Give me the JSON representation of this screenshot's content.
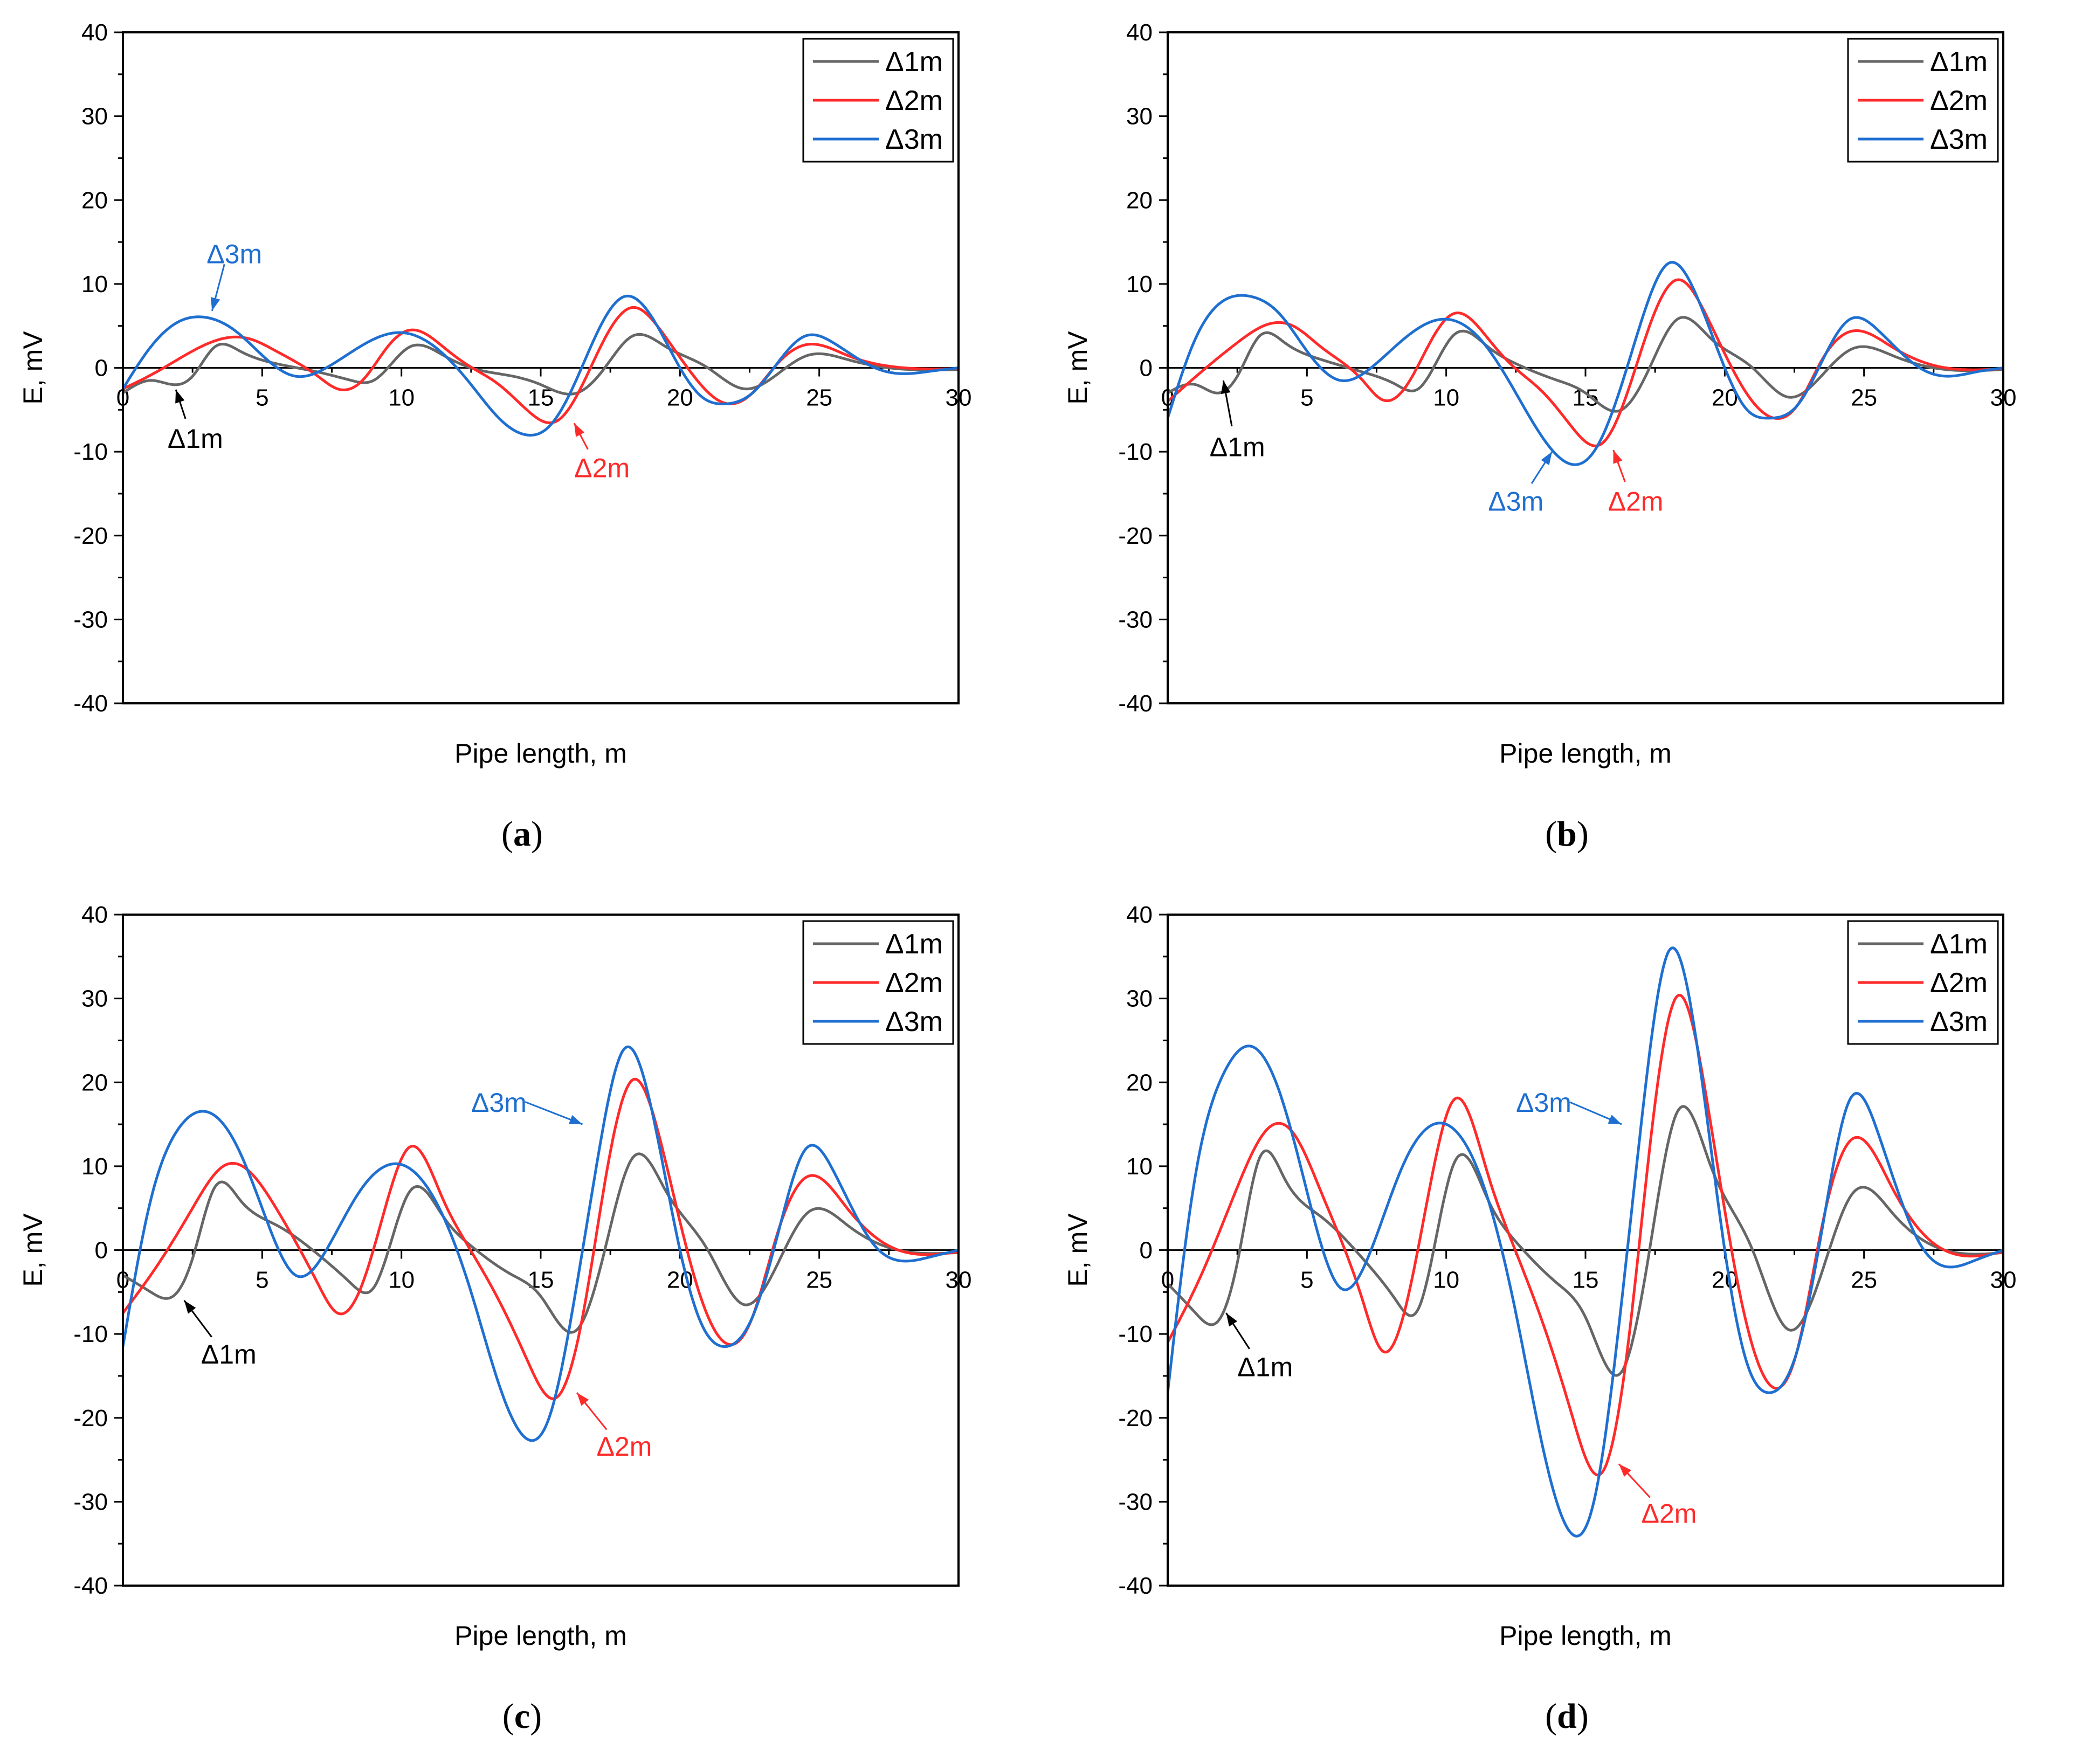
{
  "chart_data": [
    {
      "panel_label": "a",
      "type": "line",
      "xlabel": "Pipe length, m",
      "ylabel": "E, mV",
      "xlim": [
        0,
        30
      ],
      "ylim": [
        -40,
        40
      ],
      "xticks": [
        0,
        5,
        10,
        15,
        20,
        25,
        30
      ],
      "yticks": [
        -40,
        -30,
        -20,
        -10,
        0,
        10,
        20,
        30,
        40
      ],
      "legend": [
        "Δ1m",
        "Δ2m",
        "Δ3m"
      ],
      "legend_position": "top-right",
      "series": [
        {
          "name": "Δ1m",
          "color": "#666666",
          "x": [
            0,
            1,
            1.8,
            2.5,
            3.3,
            4.2,
            5.5,
            7,
            8.2,
            9,
            10.3,
            11.5,
            12.5,
            14,
            15,
            16.3,
            17.3,
            18.3,
            19.5,
            21,
            22.3,
            23.6,
            24.6,
            26,
            27.5,
            30
          ],
          "y": [
            -3,
            -1.5,
            -2,
            -1,
            2.5,
            2,
            0.5,
            -0.5,
            -1.5,
            -1.5,
            2.5,
            1.5,
            0,
            -1,
            -2,
            -3,
            0,
            3.8,
            2.5,
            0,
            -2.5,
            -0.5,
            1.5,
            1,
            0,
            -0.2
          ]
        },
        {
          "name": "Δ2m",
          "color": "#ff2a2a",
          "x": [
            0,
            1.2,
            2.5,
            3.6,
            4.5,
            5.5,
            7,
            7.7,
            8.6,
            9.5,
            10.3,
            11.5,
            12.3,
            13.5,
            14.5,
            15.6,
            16.5,
            17.3,
            18.3,
            19.3,
            20.5,
            21.6,
            22.6,
            23.5,
            24.6,
            26,
            27.5,
            30
          ],
          "y": [
            -2.5,
            -0.5,
            2,
            3.5,
            3.5,
            2,
            -1,
            -2.5,
            -1.5,
            2.5,
            4.5,
            2.5,
            0.5,
            -2,
            -5,
            -6.3,
            -2,
            3.5,
            7.2,
            4.5,
            -1,
            -4.2,
            -3,
            0.5,
            2.8,
            1.5,
            0.2,
            -0.1
          ]
        },
        {
          "name": "Δ3m",
          "color": "#1f6fd1",
          "x": [
            0,
            1,
            2,
            3,
            4,
            5,
            6.2,
            7.3,
            8.5,
            10,
            11.2,
            12.5,
            13.5,
            14.5,
            15.3,
            16.2,
            17,
            18,
            19,
            20,
            20.8,
            21.6,
            22.6,
            23.6,
            24.5,
            25.5,
            27,
            28,
            29,
            30
          ],
          "y": [
            -2.5,
            2.5,
            5.5,
            6,
            4.5,
            1.5,
            -1,
            0,
            2.5,
            4.2,
            2.5,
            -2,
            -6,
            -8,
            -7,
            -2,
            4,
            8.5,
            6,
            0,
            -3.5,
            -4.3,
            -3,
            1,
            3.8,
            3,
            0,
            -0.7,
            -0.4,
            0
          ]
        }
      ],
      "annotations": [
        {
          "text": "Δ3m",
          "color": "#1f6fd1",
          "x": 4,
          "y": 13.5,
          "target": [
            3.2,
            6.8
          ]
        },
        {
          "text": "Δ1m",
          "color": "#000000",
          "x": 2.6,
          "y": -8.5,
          "target": [
            1.9,
            -2.6
          ]
        },
        {
          "text": "Δ2m",
          "color": "#ff2a2a",
          "x": 17.2,
          "y": -12,
          "target": [
            16.2,
            -6.6
          ]
        }
      ]
    },
    {
      "panel_label": "b",
      "type": "line",
      "xlabel": "Pipe length, m",
      "ylabel": "E, mV",
      "xlim": [
        0,
        30
      ],
      "ylim": [
        -40,
        40
      ],
      "xticks": [
        0,
        5,
        10,
        15,
        20,
        25,
        30
      ],
      "yticks": [
        -40,
        -30,
        -20,
        -10,
        0,
        10,
        20,
        30,
        40
      ],
      "legend": [
        "Δ1m",
        "Δ2m",
        "Δ3m"
      ],
      "legend_position": "top-right",
      "series": [
        {
          "name": "Δ1m",
          "color": "#666666",
          "x": [
            0,
            1,
            1.8,
            2.5,
            3.3,
            4.2,
            5.5,
            7,
            8.2,
            9,
            10.3,
            11.5,
            12.5,
            14,
            15,
            16.3,
            17.3,
            18.3,
            19.5,
            21,
            22.3,
            23.6,
            24.6,
            26,
            27.5,
            30
          ],
          "y": [
            -3,
            -2,
            -3,
            -1,
            3.8,
            3,
            1,
            -0.5,
            -2,
            -2.5,
            4,
            2.5,
            0.5,
            -1.5,
            -3,
            -5,
            0,
            5.8,
            3.5,
            0,
            -3.5,
            -0.5,
            2.3,
            1.5,
            0,
            -0.2
          ]
        },
        {
          "name": "Δ2m",
          "color": "#ff2a2a",
          "x": [
            0,
            1.2,
            2.5,
            3.6,
            4.5,
            5.5,
            7,
            7.7,
            8.6,
            9.5,
            10.3,
            11.5,
            12.3,
            13.5,
            14.5,
            15.6,
            16.5,
            17.3,
            18.3,
            19.3,
            20.5,
            21.6,
            22.6,
            23.5,
            24.6,
            26,
            27.5,
            30
          ],
          "y": [
            -4,
            -0.5,
            3,
            5.2,
            5,
            2.5,
            -1.5,
            -3.8,
            -2,
            3.5,
            6.5,
            3.5,
            0.5,
            -3,
            -7,
            -9,
            -3,
            5,
            10.5,
            6.5,
            -1.5,
            -5.8,
            -4.5,
            1,
            4.4,
            2.5,
            0.3,
            -0.1
          ]
        },
        {
          "name": "Δ3m",
          "color": "#1f6fd1",
          "x": [
            0,
            1,
            2,
            3,
            4,
            5,
            6.2,
            7.3,
            8.5,
            10,
            11.2,
            12.5,
            13.5,
            14.5,
            15.3,
            16.2,
            17,
            18,
            19,
            20,
            20.8,
            21.6,
            22.6,
            23.6,
            24.5,
            25.5,
            27,
            28,
            29,
            30
          ],
          "y": [
            -6,
            3.5,
            8,
            8.5,
            6.5,
            2,
            -1.5,
            0,
            3.5,
            5.8,
            3.5,
            -3,
            -8.5,
            -11.5,
            -10,
            -3,
            5.5,
            12.5,
            8.5,
            0,
            -5,
            -6,
            -4.5,
            1.5,
            5.8,
            4.5,
            0,
            -1,
            -0.5,
            0
          ]
        }
      ],
      "annotations": [
        {
          "text": "Δ1m",
          "color": "#000000",
          "x": 2.5,
          "y": -9.5,
          "target": [
            2.0,
            -1.5
          ]
        },
        {
          "text": "Δ3m",
          "color": "#1f6fd1",
          "x": 12.5,
          "y": -16,
          "target": [
            13.8,
            -10
          ]
        },
        {
          "text": "Δ2m",
          "color": "#ff2a2a",
          "x": 16.8,
          "y": -16,
          "target": [
            16.0,
            -9.8
          ]
        }
      ]
    },
    {
      "panel_label": "c",
      "type": "line",
      "xlabel": "Pipe length, m",
      "ylabel": "E, mV",
      "xlim": [
        0,
        30
      ],
      "ylim": [
        -40,
        40
      ],
      "xticks": [
        0,
        5,
        10,
        15,
        20,
        25,
        30
      ],
      "yticks": [
        -40,
        -30,
        -20,
        -10,
        0,
        10,
        20,
        30,
        40
      ],
      "legend": [
        "Δ1m",
        "Δ2m",
        "Δ3m"
      ],
      "legend_position": "top-right",
      "series": [
        {
          "name": "Δ1m",
          "color": "#666666",
          "x": [
            0,
            1,
            1.8,
            2.5,
            3.3,
            4.2,
            5.5,
            7,
            8.2,
            9,
            10.3,
            11.5,
            12.5,
            14,
            15,
            16.3,
            17.3,
            18.3,
            19.5,
            21,
            22.3,
            23.6,
            24.6,
            26,
            27.5,
            30
          ],
          "y": [
            -3,
            -5,
            -5.5,
            -1,
            7.5,
            6,
            3,
            -0.5,
            -4,
            -4.5,
            7,
            4,
            0.5,
            -3,
            -5.5,
            -9.5,
            0,
            11,
            7,
            0,
            -6.5,
            -1,
            4.5,
            3,
            0.3,
            -0.3
          ]
        },
        {
          "name": "Δ2m",
          "color": "#ff2a2a",
          "x": [
            0,
            1.2,
            2.5,
            3.6,
            4.5,
            5.5,
            7,
            7.7,
            8.6,
            9.5,
            10.3,
            11.5,
            12.3,
            13.5,
            14.5,
            15.6,
            16.5,
            17.3,
            18.3,
            19.3,
            20.5,
            21.6,
            22.6,
            23.5,
            24.6,
            26,
            27.5,
            30
          ],
          "y": [
            -7.5,
            -2,
            5,
            10,
            9.5,
            5,
            -4,
            -7.5,
            -4,
            6,
            12.3,
            6,
            1,
            -6,
            -13,
            -17.5,
            -8,
            8,
            20.3,
            13,
            -3,
            -11,
            -8,
            2,
            8.8,
            5,
            0.5,
            -0.2
          ]
        },
        {
          "name": "Δ3m",
          "color": "#1f6fd1",
          "x": [
            0,
            1,
            2,
            3,
            4,
            5,
            6.2,
            7.3,
            8.5,
            10,
            11.2,
            12.5,
            13.5,
            14.5,
            15.3,
            16.2,
            17,
            18,
            19,
            20,
            20.8,
            21.6,
            22.6,
            23.6,
            24.5,
            25.5,
            27,
            28,
            29,
            30
          ],
          "y": [
            -11.5,
            6,
            14.5,
            16.5,
            13,
            5,
            -3,
            0,
            7,
            10.2,
            6,
            -5,
            -16,
            -22.5,
            -20,
            -6,
            10,
            24,
            16.5,
            0,
            -9,
            -11.5,
            -8,
            3,
            12,
            9.5,
            0.5,
            -1.3,
            -0.8,
            0
          ]
        }
      ],
      "annotations": [
        {
          "text": "Δ3m",
          "color": "#1f6fd1",
          "x": 13.5,
          "y": 17.5,
          "target": [
            16.5,
            15
          ]
        },
        {
          "text": "Δ1m",
          "color": "#000000",
          "x": 3.8,
          "y": -12.5,
          "target": [
            2.2,
            -6
          ]
        },
        {
          "text": "Δ2m",
          "color": "#ff2a2a",
          "x": 18,
          "y": -23.5,
          "target": [
            16.3,
            -17
          ]
        }
      ]
    },
    {
      "panel_label": "d",
      "type": "line",
      "xlabel": "Pipe length, m",
      "ylabel": "E, mV",
      "xlim": [
        0,
        30
      ],
      "ylim": [
        -40,
        40
      ],
      "xticks": [
        0,
        5,
        10,
        15,
        20,
        25,
        30
      ],
      "yticks": [
        -40,
        -30,
        -20,
        -10,
        0,
        10,
        20,
        30,
        40
      ],
      "legend": [
        "Δ1m",
        "Δ2m",
        "Δ3m"
      ],
      "legend_position": "top-right",
      "series": [
        {
          "name": "Δ1m",
          "color": "#666666",
          "x": [
            0,
            1,
            1.8,
            2.5,
            3.3,
            4.2,
            5.5,
            7,
            8.2,
            9,
            10.3,
            11.5,
            12.5,
            14,
            15,
            16.3,
            17.3,
            18.3,
            19.5,
            21,
            22.3,
            23.6,
            24.6,
            26,
            27.5,
            30
          ],
          "y": [
            -4,
            -7.5,
            -8.5,
            -1.5,
            11,
            8.5,
            4,
            -1,
            -6,
            -7,
            10.5,
            6,
            1,
            -4,
            -8,
            -14.5,
            0,
            16.5,
            10,
            0,
            -9.5,
            -1.5,
            6.8,
            4.5,
            0.5,
            -0.3
          ]
        },
        {
          "name": "Δ2m",
          "color": "#ff2a2a",
          "x": [
            0,
            1.2,
            2.5,
            3.6,
            4.5,
            5.5,
            7,
            7.7,
            8.6,
            9.5,
            10.3,
            11.5,
            12.3,
            13.5,
            14.5,
            15.6,
            16.5,
            17.3,
            18.3,
            19.3,
            20.5,
            21.6,
            22.6,
            23.5,
            24.6,
            26,
            27.5,
            30
          ],
          "y": [
            -11,
            -3,
            7.5,
            14.5,
            14,
            7,
            -6,
            -12,
            -6,
            9,
            18,
            9,
            1.5,
            -9,
            -19.5,
            -26.5,
            -12,
            12,
            30.3,
            19,
            -4.5,
            -16,
            -12,
            3,
            13.3,
            7.5,
            0.8,
            -0.2
          ]
        },
        {
          "name": "Δ3m",
          "color": "#1f6fd1",
          "x": [
            0,
            1,
            2,
            3,
            4,
            5,
            6.2,
            7.3,
            8.5,
            10,
            11.2,
            12.5,
            13.5,
            14.5,
            15.3,
            16.2,
            17,
            18,
            19,
            20,
            20.8,
            21.6,
            22.6,
            23.6,
            24.5,
            25.5,
            27,
            28,
            29,
            30
          ],
          "y": [
            -17,
            9,
            21,
            24.3,
            19,
            7,
            -4.5,
            0,
            10.5,
            15,
            9,
            -7.5,
            -24,
            -33.8,
            -30,
            -9,
            15,
            35.7,
            24.5,
            0,
            -13.5,
            -17,
            -12,
            4.5,
            18,
            14,
            0.8,
            -2,
            -1.2,
            0
          ]
        }
      ],
      "annotations": [
        {
          "text": "Δ3m",
          "color": "#1f6fd1",
          "x": 13.5,
          "y": 17.5,
          "target": [
            16.3,
            15
          ]
        },
        {
          "text": "Δ1m",
          "color": "#000000",
          "x": 3.5,
          "y": -14,
          "target": [
            2.1,
            -7.5
          ]
        },
        {
          "text": "Δ2m",
          "color": "#ff2a2a",
          "x": 18,
          "y": -31.5,
          "target": [
            16.2,
            -25.5
          ]
        }
      ]
    }
  ]
}
